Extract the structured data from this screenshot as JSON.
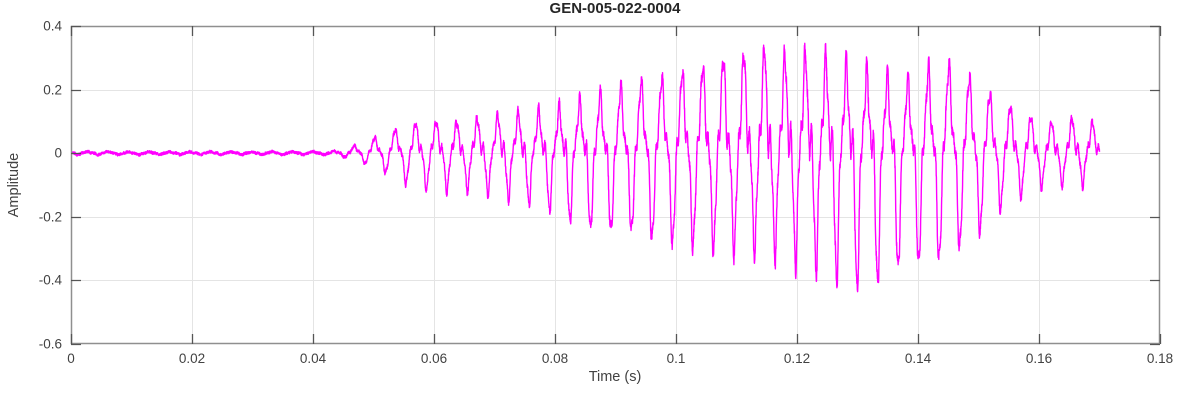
{
  "chart_data": {
    "type": "line",
    "title": "GEN-005-022-0004",
    "xlabel": "Time (s)",
    "ylabel": "Amplitude",
    "xlim": [
      0,
      0.18
    ],
    "ylim": [
      -0.6,
      0.4
    ],
    "grid": true,
    "legend": false,
    "box": true,
    "tick_direction": "in",
    "xticks": [
      {
        "v": 0,
        "label": "0"
      },
      {
        "v": 0.02,
        "label": "0.02"
      },
      {
        "v": 0.04,
        "label": "0.04"
      },
      {
        "v": 0.06,
        "label": "0.06"
      },
      {
        "v": 0.08,
        "label": "0.08"
      },
      {
        "v": 0.1,
        "label": "0.1"
      },
      {
        "v": 0.12,
        "label": "0.12"
      },
      {
        "v": 0.14,
        "label": "0.14"
      },
      {
        "v": 0.16,
        "label": "0.16"
      },
      {
        "v": 0.18,
        "label": "0.18"
      }
    ],
    "yticks": [
      {
        "v": -0.6,
        "label": "-0.6"
      },
      {
        "v": -0.4,
        "label": "-0.4"
      },
      {
        "v": -0.2,
        "label": "-0.2"
      },
      {
        "v": 0,
        "label": "0"
      },
      {
        "v": 0.2,
        "label": "0.2"
      },
      {
        "v": 0.4,
        "label": "0.4"
      }
    ],
    "style": {
      "line_color": "#ff00ff",
      "grid_color": "#e4e4e4",
      "box_color": "#8f8f8f",
      "tick_color": "#555555",
      "label_color": "#424242",
      "title_color": "#262626",
      "background": "#ffffff"
    },
    "series": [
      {
        "name": "GEN-005-022-0004",
        "color": "#ff00ff",
        "signal": {
          "description": "Acoustic-emission style burst: flat noise floor near 0 until ~0.044 s, oscillation onset ~0.046 s at ~295 Hz with harmonics, envelope grows to max +0.35 at ~0.115 s and min -0.43 at ~0.130 s, decays to ~±0.10 by 0.16 s, trace ends at 0.170 s",
          "onset_s": 0.046,
          "end_s": 0.17,
          "fundamental_hz": 295,
          "harmonics": [
            {
              "n": 1,
              "amp": 0.62,
              "phase": 0
            },
            {
              "n": 2,
              "amp": 0.12,
              "phase": 0.9
            },
            {
              "n": 3,
              "amp": 0.18,
              "phase": 3.1416
            }
          ],
          "ripple_hz": 1750,
          "ripple_amp_frac": 0.1,
          "slow_mod_hz": 21,
          "slow_mod_depth": 0.08,
          "noise_floor": 0.004,
          "noise_frac": 0.04,
          "envelope_t_up_down": [
            [
              0.0,
              0.005,
              0.005
            ],
            [
              0.043,
              0.005,
              0.005
            ],
            [
              0.046,
              0.015,
              0.015
            ],
            [
              0.049,
              0.04,
              0.035
            ],
            [
              0.052,
              0.06,
              0.06
            ],
            [
              0.056,
              0.09,
              0.1
            ],
            [
              0.06,
              0.1,
              0.12
            ],
            [
              0.064,
              0.1,
              0.12
            ],
            [
              0.068,
              0.12,
              0.13
            ],
            [
              0.072,
              0.13,
              0.15
            ],
            [
              0.076,
              0.14,
              0.17
            ],
            [
              0.08,
              0.15,
              0.19
            ],
            [
              0.084,
              0.17,
              0.23
            ],
            [
              0.088,
              0.19,
              0.24
            ],
            [
              0.092,
              0.21,
              0.23
            ],
            [
              0.096,
              0.22,
              0.26
            ],
            [
              0.1,
              0.24,
              0.28
            ],
            [
              0.104,
              0.26,
              0.29
            ],
            [
              0.108,
              0.3,
              0.31
            ],
            [
              0.112,
              0.33,
              0.32
            ],
            [
              0.115,
              0.35,
              0.33
            ],
            [
              0.118,
              0.33,
              0.35
            ],
            [
              0.121,
              0.34,
              0.37
            ],
            [
              0.125,
              0.32,
              0.4
            ],
            [
              0.13,
              0.28,
              0.43
            ],
            [
              0.134,
              0.25,
              0.4
            ],
            [
              0.138,
              0.22,
              0.33
            ],
            [
              0.142,
              0.26,
              0.34
            ],
            [
              0.146,
              0.27,
              0.3
            ],
            [
              0.15,
              0.21,
              0.25
            ],
            [
              0.154,
              0.16,
              0.17
            ],
            [
              0.158,
              0.12,
              0.13
            ],
            [
              0.162,
              0.1,
              0.1
            ],
            [
              0.166,
              0.12,
              0.11
            ],
            [
              0.17,
              0.1,
              0.1
            ]
          ]
        }
      }
    ]
  }
}
